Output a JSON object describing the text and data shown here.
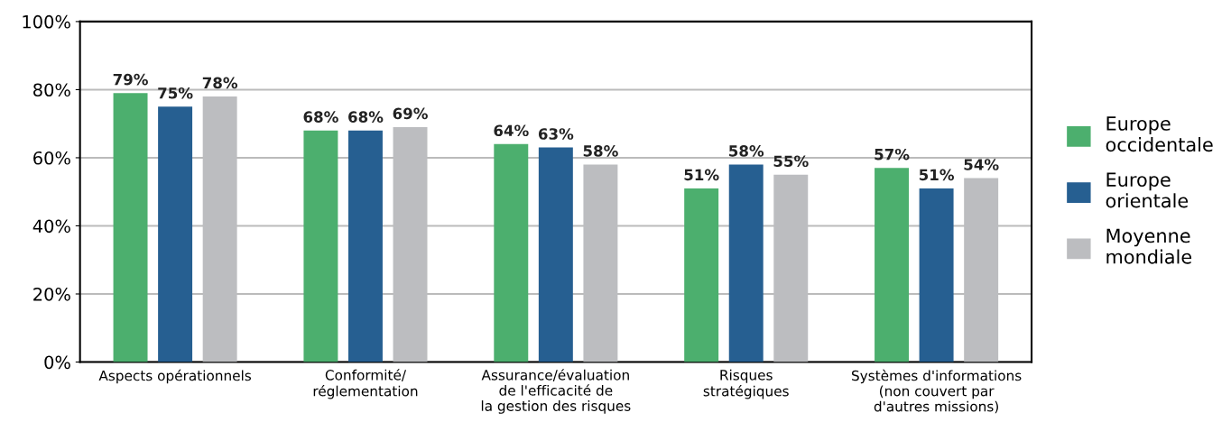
{
  "chart_data": {
    "type": "bar",
    "categories": [
      "Aspects opérationnels",
      "Conformité/\nréglementation",
      "Assurance/évaluation\nde l'efficacité de\nla gestion des risques",
      "Risques\nstratégiques",
      "Systèmes d'informations\n(non couvert par\nd'autres missions)"
    ],
    "series": [
      {
        "name": "Europe\noccidentale",
        "color": "#4caf6e",
        "values": [
          79,
          68,
          64,
          51,
          57
        ],
        "value_labels": [
          "79%",
          "68%",
          "64%",
          "51%",
          "57%"
        ]
      },
      {
        "name": "Europe\norientale",
        "color": "#265f91",
        "values": [
          75,
          68,
          63,
          58,
          51
        ],
        "value_labels": [
          "75%",
          "68%",
          "63%",
          "58%",
          "51%"
        ]
      },
      {
        "name": "Moyenne\nmondiale",
        "color": "#bcbdc0",
        "values": [
          78,
          69,
          58,
          55,
          54
        ],
        "value_labels": [
          "78%",
          "69%",
          "58%",
          "55%",
          "54%"
        ]
      }
    ],
    "ylim": [
      0,
      100
    ],
    "yticks": [
      {
        "value": 0,
        "label": "0%"
      },
      {
        "value": 20,
        "label": "20%"
      },
      {
        "value": 40,
        "label": "40%"
      },
      {
        "value": 60,
        "label": "60%"
      },
      {
        "value": 80,
        "label": "80%"
      },
      {
        "value": 100,
        "label": "100%"
      }
    ],
    "grid": "y",
    "legend": "right"
  }
}
